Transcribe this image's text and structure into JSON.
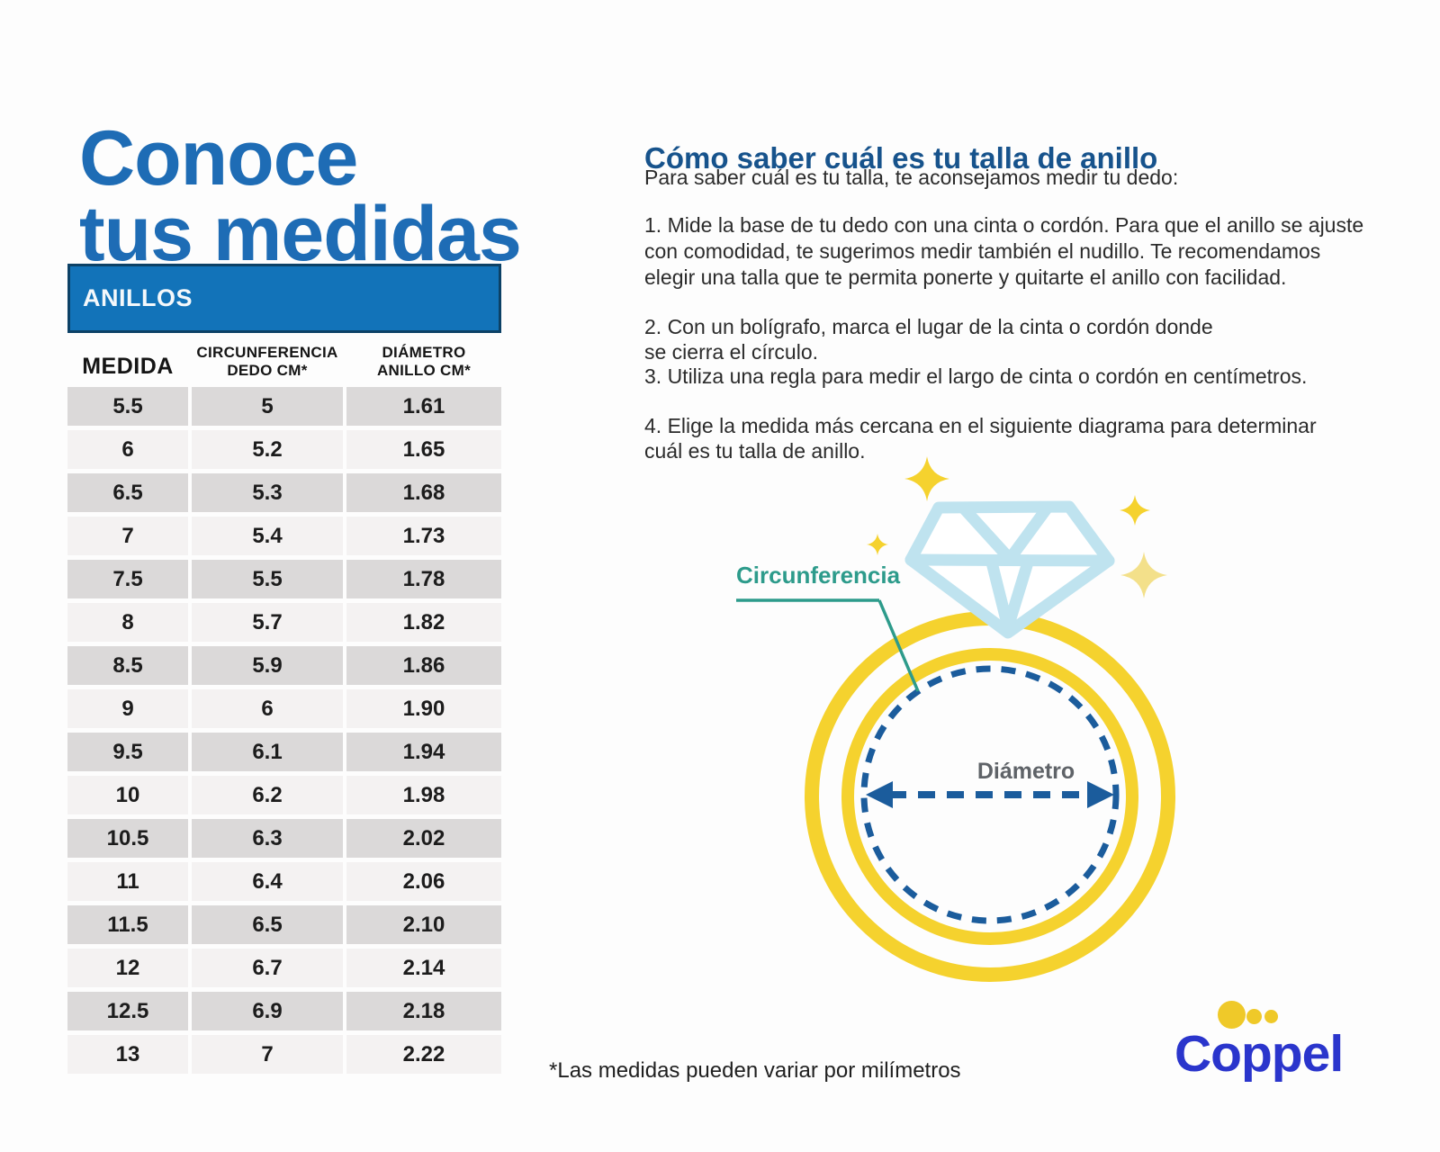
{
  "title": {
    "line1": "Conoce",
    "line2": "tus medidas",
    "color": "#1E6CB5"
  },
  "table": {
    "title": "ANILLOS",
    "columns": [
      {
        "line1": "MEDIDA",
        "line2": ""
      },
      {
        "line1": "CIRCUNFERENCIA",
        "line2": "DEDO CM*"
      },
      {
        "line1": "DIÁMETRO",
        "line2": "ANILLO CM*"
      }
    ],
    "rows": [
      [
        "5.5",
        "5",
        "1.61"
      ],
      [
        "6",
        "5.2",
        "1.65"
      ],
      [
        "6.5",
        "5.3",
        "1.68"
      ],
      [
        "7",
        "5.4",
        "1.73"
      ],
      [
        "7.5",
        "5.5",
        "1.78"
      ],
      [
        "8",
        "5.7",
        "1.82"
      ],
      [
        "8.5",
        "5.9",
        "1.86"
      ],
      [
        "9",
        "6",
        "1.90"
      ],
      [
        "9.5",
        "6.1",
        "1.94"
      ],
      [
        "10",
        "6.2",
        "1.98"
      ],
      [
        "10.5",
        "6.3",
        "2.02"
      ],
      [
        "11",
        "6.4",
        "2.06"
      ],
      [
        "11.5",
        "6.5",
        "2.10"
      ],
      [
        "12",
        "6.7",
        "2.14"
      ],
      [
        "12.5",
        "6.9",
        "2.18"
      ],
      [
        "13",
        "7",
        "2.22"
      ]
    ],
    "header_bg": "#1273B9",
    "row_dark": "#DBD9D9",
    "row_light": "#F4F2F2"
  },
  "guide": {
    "heading": "Cómo saber cuál es tu talla de anillo",
    "intro": "Para saber cuál es tu talla, te aconsejamos medir tu dedo:",
    "steps": [
      "1. Mide la base de tu dedo con una cinta o cordón. Para que el anillo se ajuste\ncon comodidad, te sugerimos medir también el nudillo. Te recomendamos\nelegir una talla que te permita ponerte y quitarte el anillo con facilidad.",
      "2. Con un bolígrafo, marca el lugar de la cinta o cordón donde\nse cierra el círculo.",
      "3. Utiliza una regla para medir el largo de cinta o cordón en centímetros.",
      "4. Elige la medida más cercana en el siguiente diagrama para determinar\ncuál es tu talla de anillo."
    ]
  },
  "diagram": {
    "circumference_label": "Circunferencia",
    "diameter_label": "Diámetro",
    "colors": {
      "ring_gold": "#F5D22E",
      "diamond_blue": "#BFE3EF",
      "dashed_blue": "#1B5C9C",
      "teal": "#2D9B8B",
      "pale_star": "#F3E08A"
    }
  },
  "footnote": "*Las medidas pueden variar por milímetros",
  "logo": {
    "text": "Coppel",
    "text_color": "#2A35CC",
    "dot_color": "#EFC929"
  }
}
